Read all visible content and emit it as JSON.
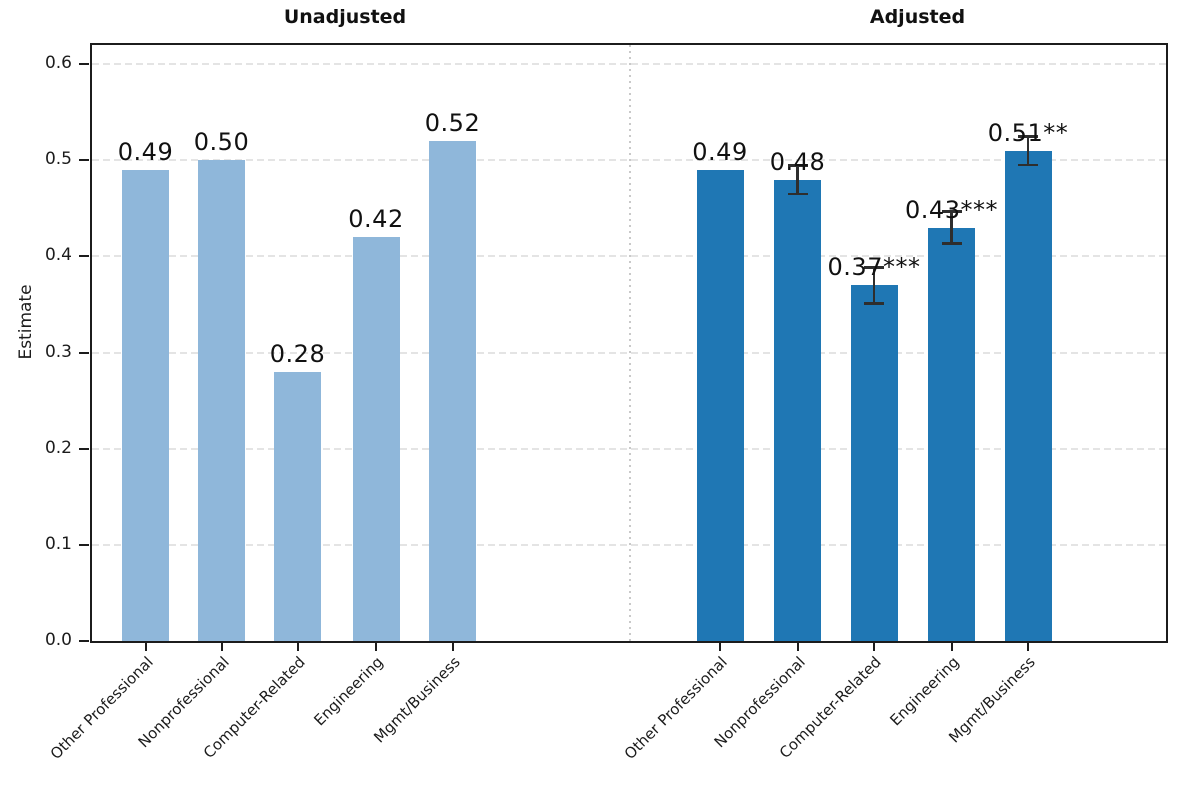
{
  "chart_data": {
    "type": "bar",
    "ylabel": "Estimate",
    "categories": [
      "Other Professional",
      "Nonprofessional",
      "Computer-Related",
      "Engineering",
      "Mgmt/Business"
    ],
    "yticks": [
      0.0,
      0.1,
      0.2,
      0.3,
      0.4,
      0.5,
      0.6
    ],
    "ytick_labels": [
      "0.0",
      "0.1",
      "0.2",
      "0.3",
      "0.4",
      "0.5",
      "0.6"
    ],
    "ylim": [
      0,
      0.62
    ],
    "grid": {
      "axis": "y",
      "style": "dashed",
      "color": "#e4e4e4"
    },
    "panel_separator": {
      "style": "dotted",
      "color": "#c9c9c9"
    },
    "axis_color": "#1c1c1c",
    "error_bar_color": "#2e2e2e",
    "panels": [
      {
        "title": "Unadjusted",
        "bar_color": "#8FB7DA",
        "values": [
          0.49,
          0.5,
          0.28,
          0.42,
          0.52
        ],
        "bar_labels": [
          "0.49",
          "0.50",
          "0.28",
          "0.42",
          "0.52"
        ],
        "errors": [
          null,
          null,
          null,
          null,
          null
        ]
      },
      {
        "title": "Adjusted",
        "bar_color": "#1F77B4",
        "values": [
          0.49,
          0.48,
          0.37,
          0.43,
          0.51
        ],
        "bar_labels": [
          "0.49",
          "0.48",
          "0.37***",
          "0.43***",
          "0.51**"
        ],
        "errors": [
          null,
          0.015,
          0.019,
          0.017,
          0.015
        ]
      }
    ]
  }
}
